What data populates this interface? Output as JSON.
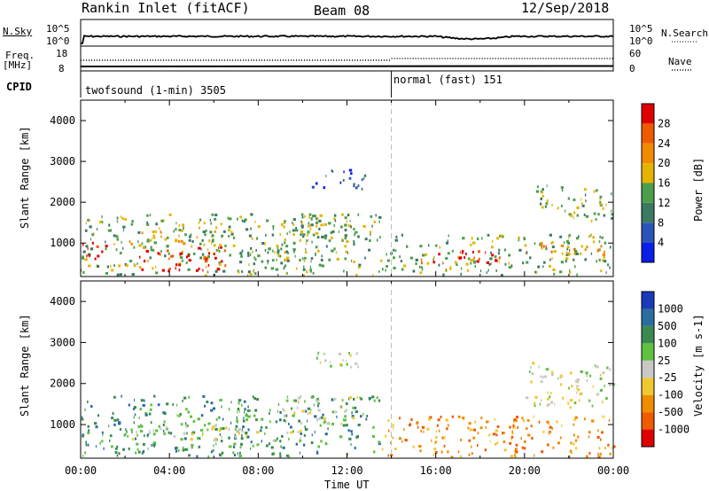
{
  "header": {
    "station": "Rankin Inlet (fitACF)",
    "beam": "Beam 08",
    "date": "12/Sep/2018"
  },
  "top_panels": {
    "nsky_label": "N.Sky",
    "nsky_ticks": [
      "10^5",
      "10^0"
    ],
    "nsearch_label": "N.Search",
    "nsearch_ticks": [
      "10^5",
      "10^0"
    ],
    "freq_label": [
      "Freq.",
      "[MHz]"
    ],
    "freq_ticks": [
      "18",
      "8"
    ],
    "nave_label": "Nave",
    "nave_ticks": [
      "60",
      "0"
    ],
    "cpid_label": "CPID",
    "cpid_segments": [
      {
        "label": "twofsound (1-min) 3505",
        "start_hour": 0
      },
      {
        "label": "normal (fast) 151",
        "start_hour": 14
      }
    ]
  },
  "chart_data": [
    {
      "type": "heatmap",
      "name": "power",
      "ylabel": "Slant Range [km]",
      "xlim": [
        0,
        24
      ],
      "ylim": [
        180,
        4500
      ],
      "yticks": [
        1000,
        2000,
        3000,
        4000
      ],
      "colorbar": {
        "label": "Power [dB]",
        "ticks": [
          "4",
          "8",
          "12",
          "16",
          "20",
          "24",
          "28"
        ],
        "colors": [
          "#0a1fe8",
          "#2a54b8",
          "#3a7a60",
          "#4c9e4c",
          "#e6b400",
          "#f08a00",
          "#f05a00",
          "#e00000"
        ]
      },
      "regions": [
        {
          "h0": 0.0,
          "h1": 13.5,
          "r0": 200,
          "r1": 1700,
          "level": 3
        },
        {
          "h0": 0.0,
          "h1": 1.2,
          "r0": 600,
          "r1": 1100,
          "level": 7
        },
        {
          "h0": 2.5,
          "h1": 6.5,
          "r0": 300,
          "r1": 900,
          "level": 7
        },
        {
          "h0": 2.0,
          "h1": 7.0,
          "r0": 900,
          "r1": 1300,
          "level": 4
        },
        {
          "h0": 6.5,
          "h1": 9.5,
          "r0": 200,
          "r1": 900,
          "level": 3
        },
        {
          "h0": 9.0,
          "h1": 12.5,
          "r0": 1000,
          "r1": 1700,
          "level": 3
        },
        {
          "h0": 10.3,
          "h1": 12.8,
          "r0": 2300,
          "r1": 2800,
          "level": 1
        },
        {
          "h0": 13.5,
          "h1": 24.0,
          "r0": 200,
          "r1": 1200,
          "level": 3
        },
        {
          "h0": 15.0,
          "h1": 19.5,
          "r0": 500,
          "r1": 800,
          "level": 7
        },
        {
          "h0": 20.0,
          "h1": 24.0,
          "r0": 700,
          "r1": 1000,
          "level": 5
        },
        {
          "h0": 20.5,
          "h1": 24.0,
          "r0": 1500,
          "r1": 2400,
          "level": 3
        }
      ]
    },
    {
      "type": "heatmap",
      "name": "velocity",
      "xlabel": "Time UT",
      "ylabel": "Slant Range [km]",
      "xlim": [
        0,
        24
      ],
      "ylim": [
        180,
        4500
      ],
      "xticks": [
        "00:00",
        "04:00",
        "08:00",
        "12:00",
        "16:00",
        "20:00",
        "00:00"
      ],
      "yticks": [
        1000,
        2000,
        3000,
        4000
      ],
      "colorbar": {
        "label": "Velocity [m s-1]",
        "ticks": [
          "1000",
          "500",
          "100",
          "25",
          "-25",
          "-100",
          "-500",
          "-1000"
        ],
        "colors": [
          "#1a3ab8",
          "#2a6ea0",
          "#3a8a50",
          "#60c040",
          "#c8c8c8",
          "#f0c830",
          "#f08c00",
          "#f05a00",
          "#e00000"
        ]
      },
      "regions": [
        {
          "h0": 0.0,
          "h1": 13.5,
          "r0": 200,
          "r1": 1700,
          "level": 2
        },
        {
          "h0": 2.0,
          "h1": 7.0,
          "r0": 600,
          "r1": 1000,
          "level": 4
        },
        {
          "h0": 7.0,
          "h1": 10.0,
          "r0": 600,
          "r1": 900,
          "level": 4
        },
        {
          "h0": 9.0,
          "h1": 12.5,
          "r0": 1000,
          "r1": 1700,
          "level": 4
        },
        {
          "h0": 10.3,
          "h1": 12.8,
          "r0": 2300,
          "r1": 2800,
          "level": 4
        },
        {
          "h0": 13.5,
          "h1": 24.0,
          "r0": 200,
          "r1": 1200,
          "level": 6
        },
        {
          "h0": 20.0,
          "h1": 24.0,
          "r0": 1400,
          "r1": 2500,
          "level": 4
        }
      ]
    }
  ]
}
